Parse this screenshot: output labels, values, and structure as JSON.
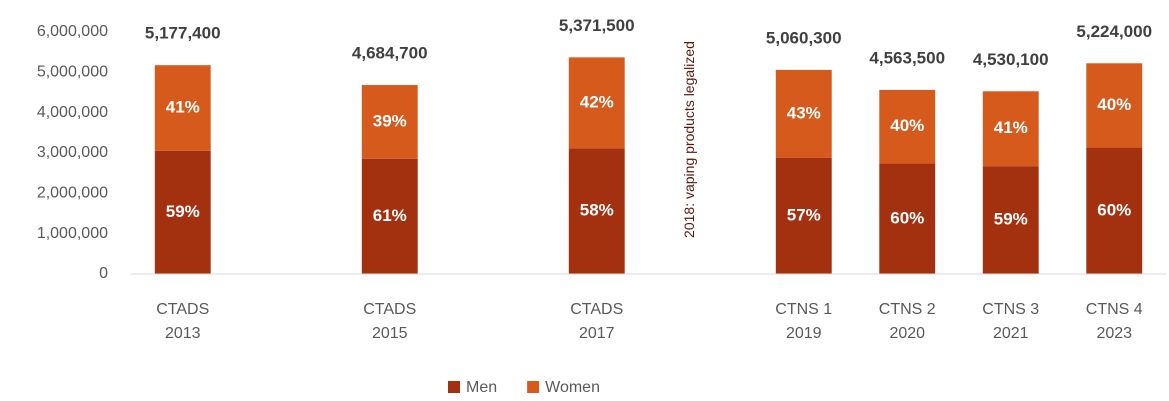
{
  "chart_data": {
    "type": "stacked_bar",
    "categories": [
      "CTADS 2013",
      null,
      "CTADS 2015",
      null,
      "CTADS 2017",
      null,
      "CTNS 1 2019",
      "CTNS 2 2020",
      "CTNS 3 2021",
      "CTNS 4 2023"
    ],
    "series": [
      {
        "name": "Men",
        "color": "#a3300f",
        "values": [
          3054700,
          null,
          2857700,
          null,
          3115500,
          null,
          2884400,
          2738100,
          2672800,
          3134400
        ],
        "share_labels": [
          "59%",
          null,
          "61%",
          null,
          "58%",
          null,
          "57%",
          "60%",
          "59%",
          "60%"
        ]
      },
      {
        "name": "Women",
        "color": "#d65a1c",
        "values": [
          2122700,
          null,
          1827000,
          null,
          2256000,
          null,
          2175900,
          1825400,
          1857300,
          2089600
        ],
        "share_labels": [
          "41%",
          null,
          "39%",
          null,
          "42%",
          null,
          "43%",
          "40%",
          "41%",
          "40%"
        ]
      }
    ],
    "totals": [
      5177400,
      null,
      4684700,
      null,
      5371500,
      null,
      5060300,
      4563500,
      4530100,
      5224000
    ],
    "total_labels": [
      "5,177,400",
      null,
      "4,684,700",
      null,
      "5,371,500",
      null,
      "5,060,300",
      "4,563,500",
      "4,530,100",
      "5,224,000"
    ],
    "annotation": "2018: vaping products legalized",
    "ylim": [
      0,
      6000000
    ],
    "yticks": [
      0,
      {
        "value": 1000000,
        "label": "1,000,000"
      },
      {
        "value": 2000000,
        "label": "2,000,000"
      },
      {
        "value": 3000000,
        "label": "3,000,000"
      },
      {
        "value": 4000000,
        "label": "4,000,000"
      },
      {
        "value": 5000000,
        "label": "5,000,000"
      },
      {
        "value": 6000000,
        "label": "6,000,000"
      }
    ],
    "grid": false,
    "legend": "bottom"
  }
}
